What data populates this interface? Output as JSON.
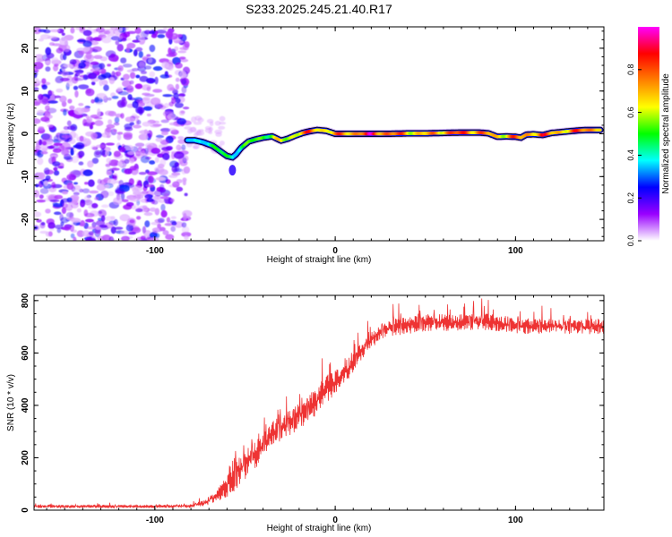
{
  "chart_data": [
    {
      "type": "heatmap",
      "title": "S233.2025.245.21.40.R17",
      "xlabel": "Height of straight line (km)",
      "ylabel": "Frequency (Hz)",
      "xlim": [
        -167,
        149
      ],
      "ylim": [
        -25,
        25
      ],
      "x_ticks": [
        -100,
        0,
        100
      ],
      "x_tick_labels": [
        "-100",
        "0",
        "100"
      ],
      "y_ticks": [
        -20,
        -10,
        0,
        10,
        20
      ],
      "y_tick_labels": [
        "-20",
        "-10",
        "0",
        "10",
        "20"
      ],
      "noise_region_end_km": -82,
      "frequency_trace": {
        "x": [
          -82,
          -78,
          -73,
          -68,
          -64,
          -60,
          -57,
          -55,
          -52,
          -48,
          -44,
          -40,
          -35,
          -30,
          -26,
          -22,
          -18,
          -14,
          -10,
          -5,
          0,
          10,
          20,
          30,
          40,
          50,
          60,
          70,
          80,
          85,
          90,
          95,
          100,
          103,
          106,
          110,
          115,
          120,
          125,
          130,
          135,
          140,
          147
        ],
        "y": [
          -1.5,
          -1.5,
          -2.0,
          -2.8,
          -4.0,
          -5.2,
          -5.5,
          -4.8,
          -3.2,
          -1.8,
          -1.3,
          -0.9,
          -0.6,
          -1.6,
          -1.1,
          -0.4,
          0.2,
          0.6,
          0.9,
          0.7,
          0.0,
          0.0,
          0.0,
          0.0,
          0.1,
          0.1,
          0.2,
          0.3,
          0.3,
          0.1,
          -0.7,
          -0.6,
          -0.7,
          -0.9,
          -0.2,
          -0.1,
          -0.3,
          0.2,
          0.4,
          0.6,
          0.8,
          0.9,
          0.9
        ],
        "amplitude": [
          0.35,
          0.38,
          0.45,
          0.5,
          0.52,
          0.55,
          0.5,
          0.45,
          0.5,
          0.55,
          0.6,
          0.62,
          0.6,
          0.7,
          0.65,
          0.72,
          0.82,
          0.85,
          0.8,
          0.75,
          0.8,
          0.85,
          0.95,
          0.9,
          0.8,
          0.75,
          0.85,
          0.9,
          0.88,
          0.8,
          0.75,
          0.8,
          0.85,
          0.8,
          0.8,
          0.85,
          0.9,
          0.8,
          0.8,
          0.82,
          0.85,
          0.9,
          0.85
        ]
      },
      "colorbar": {
        "label": "Normalized spectral amplitude",
        "range": [
          0,
          1
        ],
        "ticks": [
          0.0,
          0.2,
          0.4,
          0.6,
          0.8
        ],
        "tick_labels": [
          "0.0",
          "0.2",
          "0.4",
          "0.6",
          "0.8"
        ],
        "colors": [
          "#ffffff",
          "#9900ff",
          "#0000ff",
          "#00ffff",
          "#00ff00",
          "#ffff00",
          "#ff8000",
          "#ff0000",
          "#ff00ff"
        ]
      }
    },
    {
      "type": "line",
      "xlabel": "Height of straight line (km)",
      "ylabel": "SNR (10 * v/v)",
      "xlim": [
        -167,
        149
      ],
      "ylim": [
        0,
        820
      ],
      "x_ticks": [
        -100,
        0,
        100
      ],
      "x_tick_labels": [
        "-100",
        "0",
        "100"
      ],
      "y_ticks": [
        0,
        200,
        400,
        600,
        800
      ],
      "y_tick_labels": [
        "0",
        "200",
        "400",
        "600",
        "800"
      ],
      "line_color": "#ee3333",
      "envelope": {
        "x": [
          -167,
          -100,
          -80,
          -72,
          -66,
          -62,
          -58,
          -54,
          -50,
          -45,
          -40,
          -35,
          -30,
          -25,
          -20,
          -15,
          -10,
          -5,
          0,
          5,
          10,
          15,
          20,
          25,
          30,
          40,
          50,
          60,
          70,
          80,
          90,
          100,
          110,
          120,
          130,
          140,
          149
        ],
        "base": [
          14,
          14,
          16,
          28,
          55,
          80,
          120,
          150,
          175,
          205,
          245,
          285,
          310,
          335,
          360,
          385,
          420,
          460,
          490,
          525,
          560,
          610,
          650,
          675,
          695,
          705,
          715,
          715,
          715,
          720,
          715,
          705,
          700,
          700,
          700,
          700,
          700
        ],
        "amplitude": [
          10,
          10,
          12,
          22,
          45,
          80,
          110,
          135,
          115,
          100,
          90,
          95,
          95,
          90,
          90,
          90,
          100,
          95,
          90,
          80,
          70,
          60,
          55,
          55,
          60,
          60,
          60,
          60,
          60,
          60,
          58,
          55,
          55,
          55,
          55,
          55,
          55
        ]
      }
    }
  ]
}
